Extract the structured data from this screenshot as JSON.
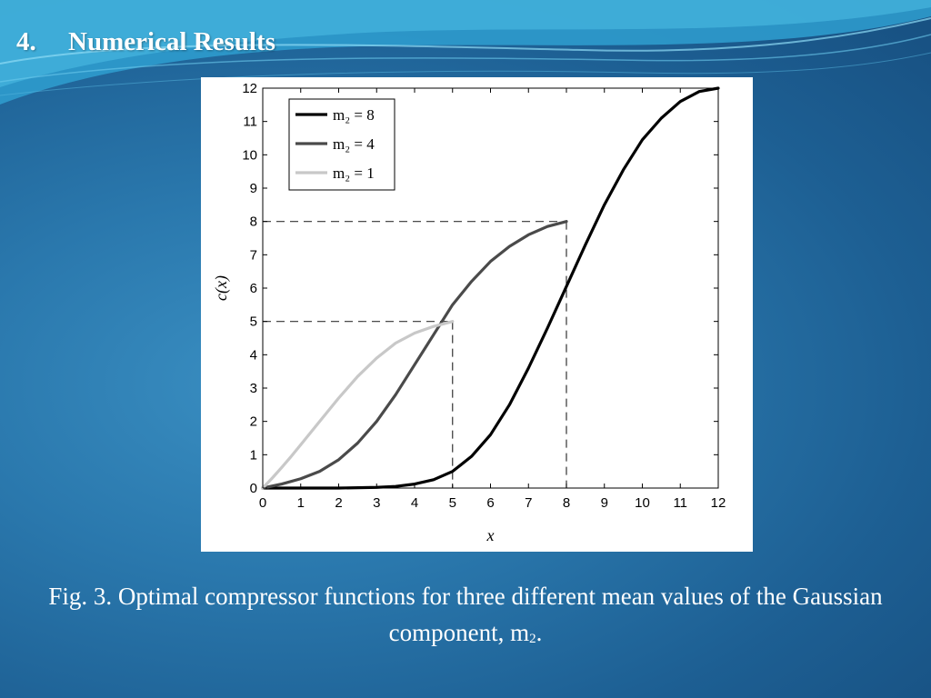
{
  "slide": {
    "number": "4.",
    "title": "Numerical Results"
  },
  "caption": {
    "text": "Fig. 3. Optimal compressor functions for three different mean values of the Gaussian component, m",
    "subscript": "2",
    "suffix": "."
  },
  "chart_data": {
    "type": "line",
    "xlabel": "x",
    "ylabel": "c(x)",
    "xlim": [
      0,
      12
    ],
    "ylim": [
      0,
      12
    ],
    "xticks": [
      "0",
      "1",
      "2",
      "3",
      "4",
      "5",
      "6",
      "7",
      "8",
      "9",
      "10",
      "11",
      "12"
    ],
    "yticks": [
      "0",
      "1",
      "2",
      "3",
      "4",
      "5",
      "6",
      "7",
      "8",
      "9",
      "10",
      "11",
      "12"
    ],
    "legend_position": "top-left",
    "grid": false,
    "series": [
      {
        "name": "m2 = 8",
        "legend_label": "m₂ = 8",
        "color": "#000000",
        "end": 12,
        "x": [
          0,
          1,
          2,
          3,
          3.5,
          4,
          4.5,
          5,
          5.5,
          6,
          6.5,
          7,
          7.5,
          8,
          8.5,
          9,
          9.5,
          10,
          10.5,
          11,
          11.5,
          12
        ],
        "y": [
          0,
          0,
          0,
          0.02,
          0.05,
          0.12,
          0.25,
          0.5,
          0.95,
          1.6,
          2.5,
          3.6,
          4.8,
          6.05,
          7.3,
          8.5,
          9.55,
          10.45,
          11.1,
          11.6,
          11.9,
          12
        ]
      },
      {
        "name": "m2 = 4",
        "legend_label": "m₂ = 4",
        "color": "#4a4a4a",
        "end": 8,
        "x": [
          0,
          0.5,
          1,
          1.5,
          2,
          2.5,
          3,
          3.5,
          4,
          4.5,
          5,
          5.5,
          6,
          6.5,
          7,
          7.5,
          8
        ],
        "y": [
          0,
          0.12,
          0.28,
          0.5,
          0.85,
          1.35,
          2.0,
          2.8,
          3.7,
          4.6,
          5.5,
          6.2,
          6.8,
          7.25,
          7.6,
          7.85,
          8
        ]
      },
      {
        "name": "m2 = 1",
        "legend_label": "m₂ = 1",
        "color": "#c8c8c8",
        "end": 5,
        "x": [
          0,
          0.25,
          0.5,
          0.75,
          1,
          1.5,
          2,
          2.5,
          3,
          3.5,
          4,
          4.5,
          5
        ],
        "y": [
          0,
          0.3,
          0.62,
          0.95,
          1.3,
          2.0,
          2.7,
          3.35,
          3.9,
          4.35,
          4.65,
          4.85,
          5
        ]
      }
    ],
    "guides": [
      {
        "x": 8,
        "y": 8
      },
      {
        "x": 5,
        "y": 5
      }
    ]
  }
}
